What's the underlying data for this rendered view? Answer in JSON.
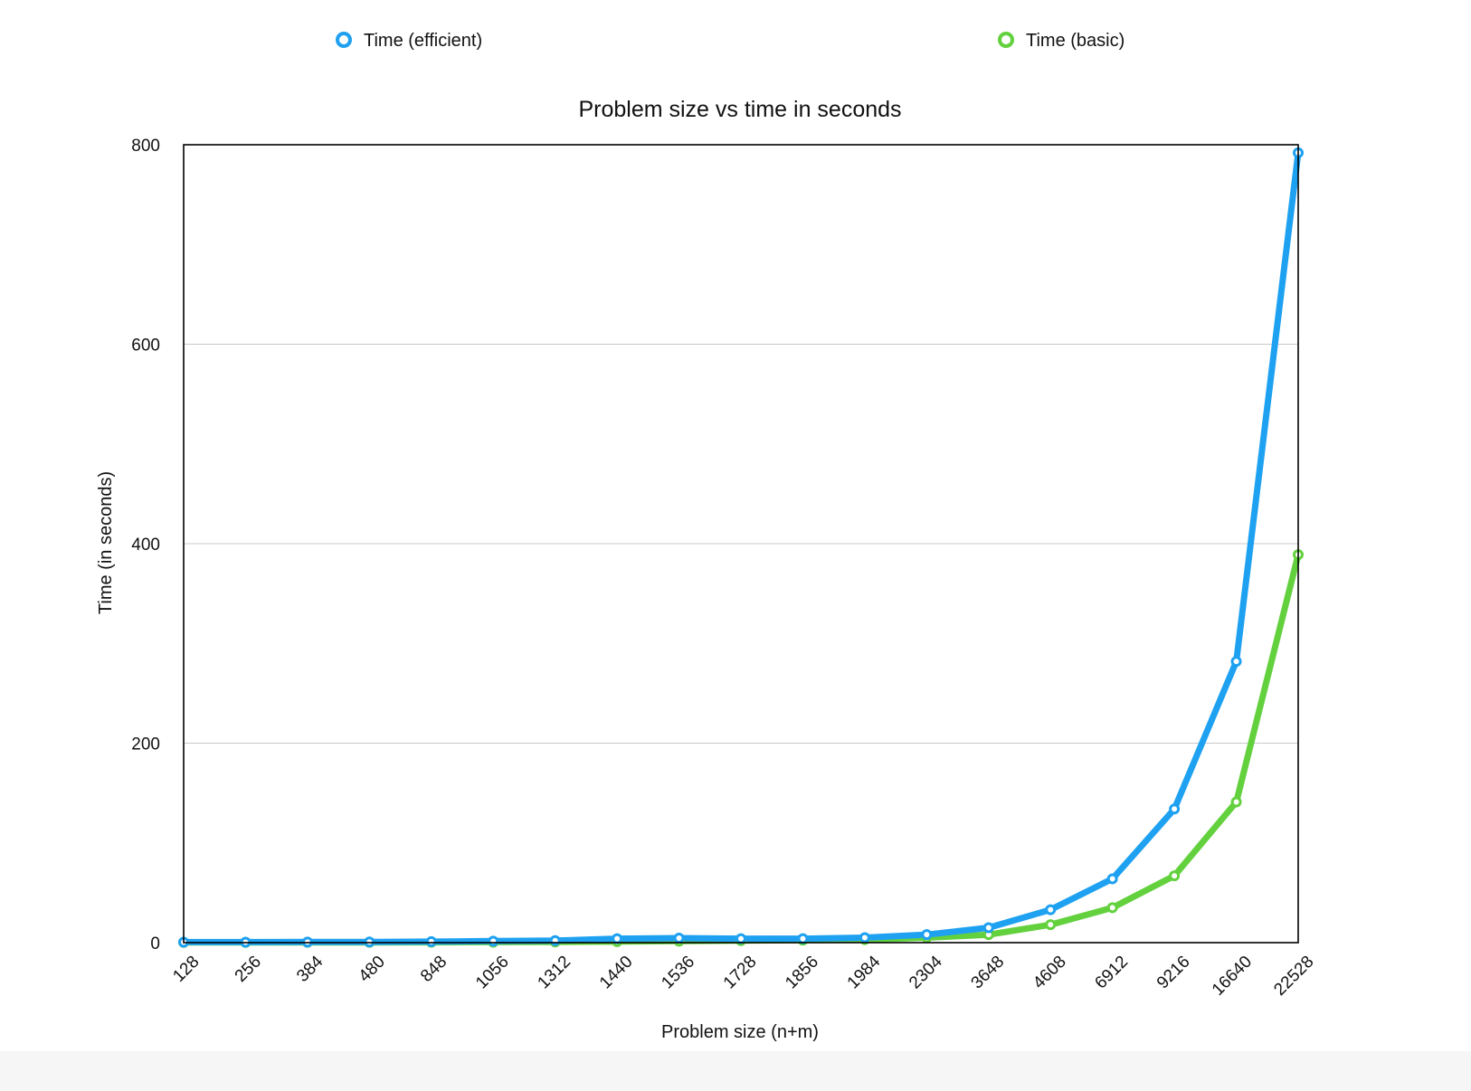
{
  "chart_data": {
    "type": "line",
    "title": "Problem size vs time in seconds",
    "xlabel": "Problem size (n+m)",
    "ylabel": "Time (in seconds)",
    "categories": [
      "128",
      "256",
      "384",
      "480",
      "848",
      "1056",
      "1312",
      "1440",
      "1536",
      "1728",
      "1856",
      "1984",
      "2304",
      "3648",
      "4608",
      "6912",
      "9216",
      "16640",
      "22528"
    ],
    "y_ticks": [
      "0",
      "200",
      "400",
      "600",
      "800"
    ],
    "ylim": [
      0,
      800
    ],
    "grid": true,
    "legend_position": "top",
    "series": [
      {
        "name": "Time (efficient)",
        "color": "#1ea1f1",
        "values": [
          0.5,
          0.5,
          0.6,
          0.7,
          1.0,
          1.5,
          2,
          4,
          4.5,
          4,
          4,
          5,
          8,
          15,
          33,
          64,
          134,
          282,
          792
        ]
      },
      {
        "name": "Time (basic)",
        "color": "#63d13e",
        "values": [
          0.2,
          0.2,
          0.3,
          0.3,
          0.4,
          0.5,
          0.7,
          1,
          1.5,
          2,
          2.5,
          3,
          5,
          8,
          18,
          35,
          67,
          141,
          389
        ]
      }
    ]
  }
}
